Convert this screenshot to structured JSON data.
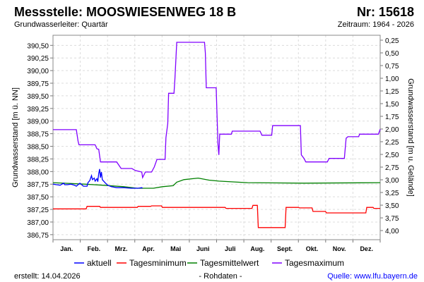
{
  "header": {
    "title": "Messstelle: MOOSWIESENWEG 18 B",
    "number": "Nr: 15618",
    "aquifer": "Grundwasserleiter: Quartär",
    "period": "Zeitraum: 1964 - 2026"
  },
  "footer": {
    "created": "erstellt:  14.04.2026",
    "raw": "- Rohdaten -",
    "source": "Quelle: www.lfu.bayern.de"
  },
  "chart_data": {
    "type": "line",
    "title": "Messstelle: MOOSWIESENWEG 18 B",
    "xlabel": "",
    "ylabel": "Grundwasserstand [m ü. NN]",
    "ylabel_right": "Grundwasserstand [m u. Gelände]",
    "xlim": [
      0,
      365
    ],
    "ylim": [
      386.65,
      390.7
    ],
    "ylim_right": [
      0.153,
      4.18
    ],
    "grid": true,
    "legend": "bottom",
    "x_tick_labels": [
      "Jan.",
      "Feb.",
      "Mrz.",
      "Apr.",
      "Mai",
      "Juni",
      "Juli",
      "Aug.",
      "Sept.",
      "Okt.",
      "Nov.",
      "Dez."
    ],
    "y_tick_labels": [
      "386,75",
      "387,00",
      "387,25",
      "387,50",
      "387,75",
      "388,00",
      "388,25",
      "388,50",
      "388,75",
      "389,00",
      "389,25",
      "389,50",
      "389,75",
      "390,00",
      "390,25",
      "390,50"
    ],
    "y_ticks": [
      386.75,
      387.0,
      387.25,
      387.5,
      387.75,
      388.0,
      388.25,
      388.5,
      388.75,
      389.0,
      389.25,
      389.5,
      389.75,
      390.0,
      390.25,
      390.5
    ],
    "y_right_tick_labels": [
      "0,25",
      "0,50",
      "0,75",
      "1,00",
      "1,25",
      "1,50",
      "1,75",
      "2,00",
      "2,25",
      "2,50",
      "2,75",
      "3,00",
      "3,25",
      "3,50",
      "3,75",
      "4,00"
    ],
    "y_right_ticks": [
      0.25,
      0.5,
      0.75,
      1.0,
      1.25,
      1.5,
      1.75,
      2.0,
      2.25,
      2.5,
      2.75,
      3.0,
      3.25,
      3.5,
      3.75,
      4.0
    ],
    "series": [
      {
        "name": "aktuell",
        "color": "#0000ff",
        "points": [
          [
            0,
            387.75
          ],
          [
            4,
            387.74
          ],
          [
            8,
            387.73
          ],
          [
            12,
            387.77
          ],
          [
            13,
            387.74
          ],
          [
            16,
            387.74
          ],
          [
            20,
            387.75
          ],
          [
            24,
            387.73
          ],
          [
            26,
            387.71
          ],
          [
            28,
            387.74
          ],
          [
            30,
            387.77
          ],
          [
            32,
            387.74
          ],
          [
            34,
            387.71
          ],
          [
            38,
            387.71
          ],
          [
            39,
            387.78
          ],
          [
            41,
            387.82
          ],
          [
            43,
            387.92
          ],
          [
            44,
            387.84
          ],
          [
            46,
            387.87
          ],
          [
            47,
            387.81
          ],
          [
            49,
            387.86
          ],
          [
            50,
            387.8
          ],
          [
            51,
            387.96
          ],
          [
            52,
            388.05
          ],
          [
            53,
            387.88
          ],
          [
            54,
            387.99
          ],
          [
            55,
            387.84
          ],
          [
            58,
            387.78
          ],
          [
            61,
            387.73
          ],
          [
            65,
            387.7
          ],
          [
            71,
            387.68
          ],
          [
            79,
            387.68
          ],
          [
            87,
            387.67
          ],
          [
            95,
            387.67
          ],
          [
            99,
            387.68
          ],
          [
            100,
            387.67
          ]
        ]
      },
      {
        "name": "Tagesminimum",
        "color": "#ff0000",
        "points": [
          [
            0,
            387.26
          ],
          [
            37,
            387.26
          ],
          [
            38,
            387.31
          ],
          [
            52,
            387.31
          ],
          [
            53,
            387.29
          ],
          [
            94,
            387.29
          ],
          [
            95,
            387.31
          ],
          [
            109,
            387.31
          ],
          [
            110,
            387.32
          ],
          [
            121,
            387.32
          ],
          [
            122,
            387.29
          ],
          [
            192,
            387.29
          ],
          [
            193,
            387.27
          ],
          [
            222,
            387.27
          ],
          [
            223,
            387.33
          ],
          [
            228,
            387.33
          ],
          [
            229,
            386.89
          ],
          [
            259,
            386.89
          ],
          [
            260,
            387.29
          ],
          [
            274,
            387.29
          ],
          [
            275,
            387.28
          ],
          [
            289,
            387.28
          ],
          [
            290,
            387.21
          ],
          [
            304,
            387.21
          ],
          [
            305,
            387.18
          ],
          [
            349,
            387.18
          ],
          [
            350,
            387.29
          ],
          [
            357,
            387.29
          ],
          [
            358,
            387.27
          ],
          [
            365,
            387.27
          ]
        ]
      },
      {
        "name": "Tagesmittelwert",
        "color": "#008000",
        "points": [
          [
            0,
            387.78
          ],
          [
            35,
            387.75
          ],
          [
            55,
            387.73
          ],
          [
            79,
            387.7
          ],
          [
            94,
            387.67
          ],
          [
            112,
            387.67
          ],
          [
            122,
            387.7
          ],
          [
            134,
            387.72
          ],
          [
            138,
            387.79
          ],
          [
            146,
            387.84
          ],
          [
            162,
            387.87
          ],
          [
            174,
            387.83
          ],
          [
            185,
            387.81
          ],
          [
            217,
            387.78
          ],
          [
            280,
            387.77
          ],
          [
            365,
            387.78
          ]
        ]
      },
      {
        "name": "Tagesmaximum",
        "color": "#8000ff",
        "points": [
          [
            0,
            388.83
          ],
          [
            26,
            388.83
          ],
          [
            28,
            388.6
          ],
          [
            29,
            388.53
          ],
          [
            47,
            388.53
          ],
          [
            49,
            388.45
          ],
          [
            51,
            388.44
          ],
          [
            53,
            388.19
          ],
          [
            71,
            388.19
          ],
          [
            76,
            388.06
          ],
          [
            88,
            388.06
          ],
          [
            92,
            388.02
          ],
          [
            99,
            387.99
          ],
          [
            100,
            387.88
          ],
          [
            103,
            387.99
          ],
          [
            110,
            387.99
          ],
          [
            113,
            388.09
          ],
          [
            116,
            388.24
          ],
          [
            125,
            388.24
          ],
          [
            126,
            388.67
          ],
          [
            128,
            388.95
          ],
          [
            129,
            389.55
          ],
          [
            135,
            389.55
          ],
          [
            136,
            389.83
          ],
          [
            138,
            390.56
          ],
          [
            169,
            390.56
          ],
          [
            170,
            390.35
          ],
          [
            171,
            389.66
          ],
          [
            182,
            389.66
          ],
          [
            184,
            388.55
          ],
          [
            185,
            388.33
          ],
          [
            186,
            388.74
          ],
          [
            199,
            388.74
          ],
          [
            200,
            388.8
          ],
          [
            231,
            388.8
          ],
          [
            233,
            388.72
          ],
          [
            244,
            388.72
          ],
          [
            245,
            388.91
          ],
          [
            276,
            388.91
          ],
          [
            277,
            388.33
          ],
          [
            280,
            388.26
          ],
          [
            282,
            388.19
          ],
          [
            306,
            388.19
          ],
          [
            308,
            388.26
          ],
          [
            325,
            388.26
          ],
          [
            327,
            388.66
          ],
          [
            329,
            388.69
          ],
          [
            341,
            388.69
          ],
          [
            342,
            388.74
          ],
          [
            363,
            388.74
          ],
          [
            365,
            388.84
          ]
        ]
      }
    ]
  }
}
